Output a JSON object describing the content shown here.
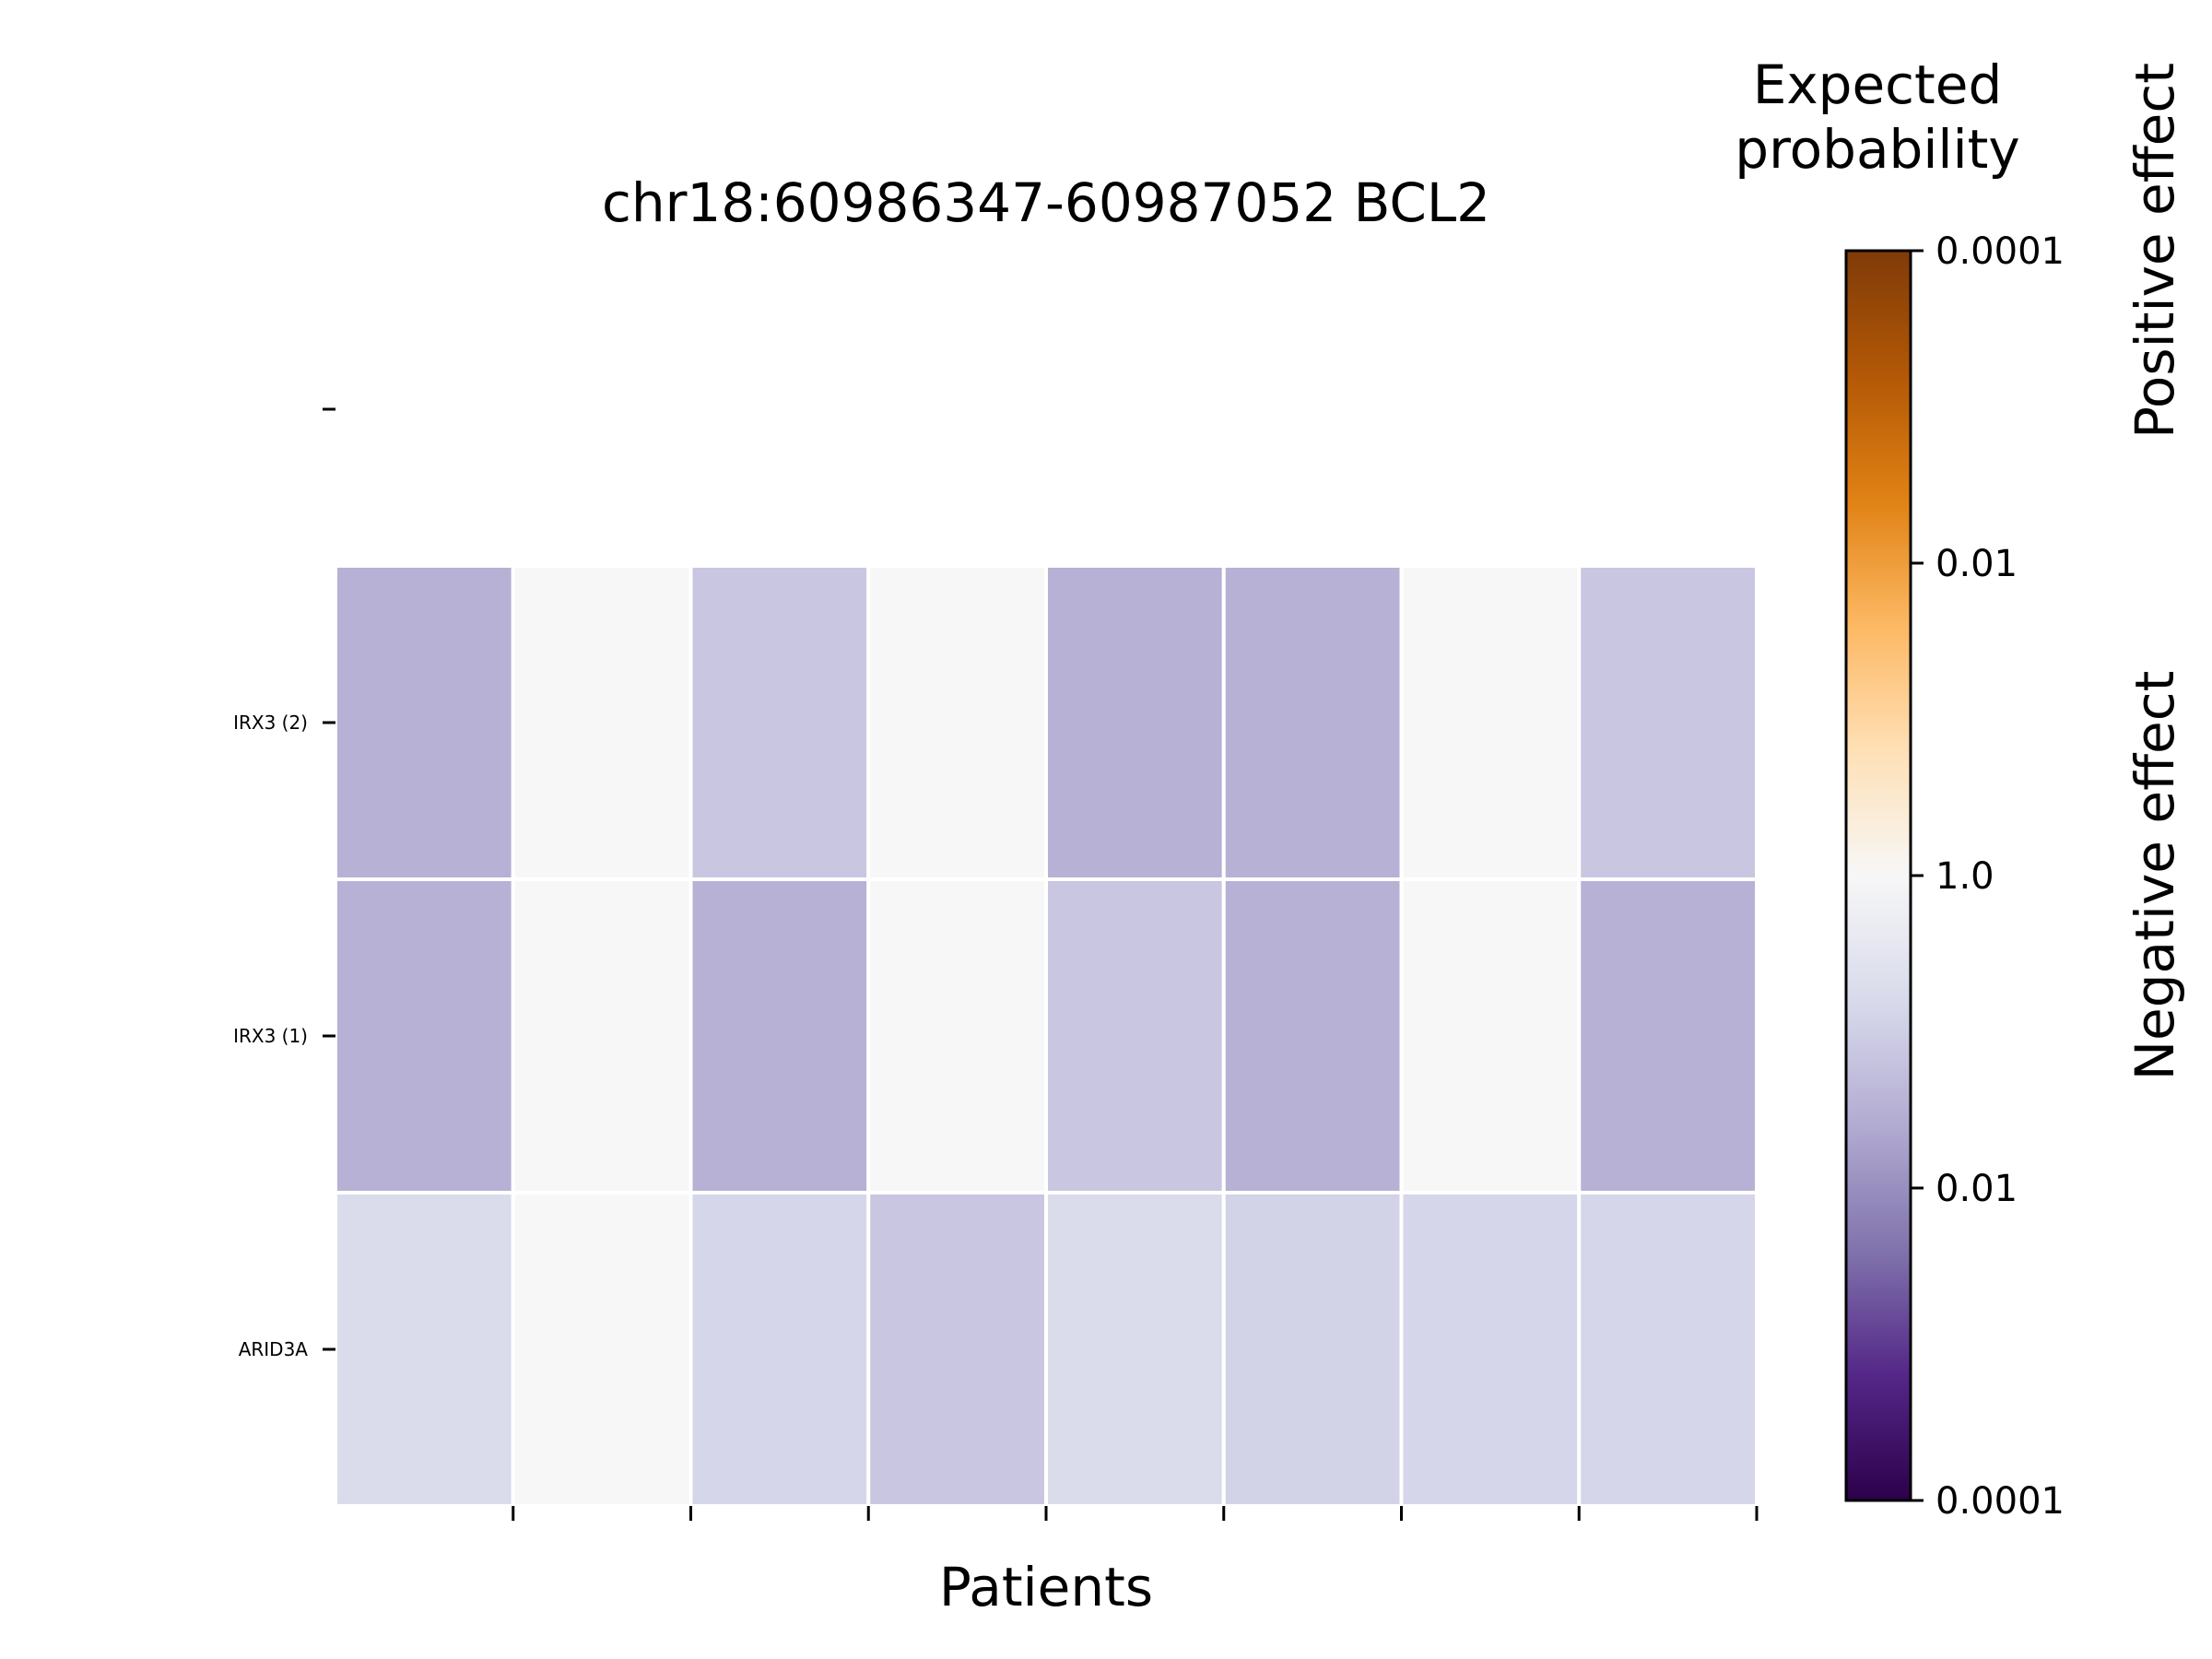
{
  "chart_data": {
    "type": "heatmap",
    "title": "chr18:60986347-60987052 BCL2",
    "xlabel": "Patients",
    "ylabel": "",
    "rows": [
      "",
      "IRX3 (2)",
      "IRX3 (1)",
      "ARID3A"
    ],
    "columns_count": 8,
    "values": [
      [
        null,
        null,
        null,
        null,
        null,
        null,
        null,
        null
      ],
      [
        0.01,
        1.0,
        0.03,
        1.0,
        0.01,
        0.01,
        1.0,
        0.03
      ],
      [
        0.01,
        1.0,
        0.01,
        1.0,
        0.03,
        0.01,
        1.0,
        0.01
      ],
      [
        0.1,
        1.0,
        0.07,
        0.03,
        0.1,
        0.06,
        0.07,
        0.07
      ]
    ],
    "colorbar": {
      "title": "Expected probability",
      "tick_labels": [
        "0.0001",
        "0.01",
        "1.0",
        "0.01",
        "0.0001"
      ],
      "upper_label": "Positive effect",
      "lower_label": "Negative effect",
      "upper_colors": [
        "#f7f7f7",
        "#fee0b6",
        "#fdb863",
        "#e08214",
        "#b35806",
        "#7f3b08"
      ],
      "lower_colors": [
        "#f7f7f7",
        "#d8daeb",
        "#b2abd2",
        "#8073ac",
        "#542788",
        "#2d004b"
      ]
    },
    "legend": "colorbar right"
  }
}
